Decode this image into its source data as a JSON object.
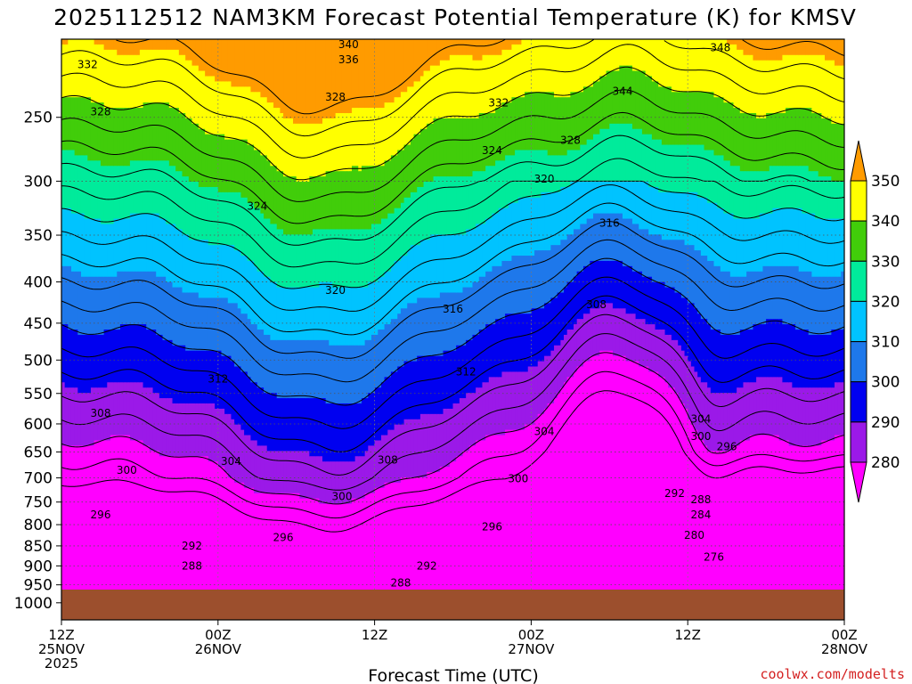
{
  "title": "2025112512 NAM3KM Forecast Potential Temperature (K) for KMSV",
  "credit": "coolwx.com/modelts",
  "colors": {
    "ground": "#9c4f2d",
    "bands": [
      {
        "min": 270,
        "max": 280,
        "color": "#ff00ff"
      },
      {
        "min": 280,
        "max": 290,
        "color": "#9b19e8"
      },
      {
        "min": 290,
        "max": 300,
        "color": "#0000f0"
      },
      {
        "min": 300,
        "max": 310,
        "color": "#1e78eb"
      },
      {
        "min": 310,
        "max": 320,
        "color": "#00c3ff"
      },
      {
        "min": 320,
        "max": 330,
        "color": "#00eb9b"
      },
      {
        "min": 330,
        "max": 340,
        "color": "#41cd0a"
      },
      {
        "min": 340,
        "max": 350,
        "color": "#ffff00"
      },
      {
        "min": 350,
        "max": 360,
        "color": "#ff9b00"
      }
    ]
  },
  "chart_data": {
    "type": "heatmap",
    "title": "2025112512 NAM3KM Forecast Potential Temperature (K) for KMSV",
    "xlabel": "Forecast Time (UTC)",
    "ylabel": "",
    "y_scale": "log",
    "y_inverted": true,
    "y_ticks": [
      250,
      300,
      350,
      400,
      450,
      500,
      550,
      600,
      650,
      700,
      750,
      800,
      850,
      900,
      950,
      1000
    ],
    "ylim": [
      200,
      1050
    ],
    "x_ticks": [
      {
        "hour": 0,
        "line1": "12Z",
        "line2": "25NOV",
        "line3": "2025"
      },
      {
        "hour": 12,
        "line1": "00Z",
        "line2": "26NOV",
        "line3": ""
      },
      {
        "hour": 24,
        "line1": "12Z",
        "line2": "",
        "line3": ""
      },
      {
        "hour": 36,
        "line1": "00Z",
        "line2": "27NOV",
        "line3": ""
      },
      {
        "hour": 48,
        "line1": "12Z",
        "line2": "",
        "line3": ""
      },
      {
        "hour": 60,
        "line1": "00Z",
        "line2": "28NOV",
        "line3": ""
      }
    ],
    "xlim": [
      0,
      60
    ],
    "ground_level_hpa": 963,
    "colorbar": {
      "ticks": [
        280,
        290,
        300,
        310,
        320,
        330,
        340,
        350
      ],
      "range": [
        270,
        360
      ],
      "extend": "both"
    },
    "contour_interval": 4,
    "contour_labels": [
      {
        "value": "340",
        "hour": 22.0,
        "p": 203
      },
      {
        "value": "336",
        "hour": 22.0,
        "p": 212
      },
      {
        "value": "348",
        "hour": 50.5,
        "p": 205
      },
      {
        "value": "332",
        "hour": 2.0,
        "p": 215
      },
      {
        "value": "344",
        "hour": 43.0,
        "p": 232
      },
      {
        "value": "328",
        "hour": 3.0,
        "p": 246
      },
      {
        "value": "328",
        "hour": 21.0,
        "p": 236
      },
      {
        "value": "332",
        "hour": 33.5,
        "p": 240
      },
      {
        "value": "328",
        "hour": 39.0,
        "p": 267
      },
      {
        "value": "324",
        "hour": 33.0,
        "p": 275
      },
      {
        "value": "320",
        "hour": 37.0,
        "p": 298
      },
      {
        "value": "324",
        "hour": 15.0,
        "p": 322
      },
      {
        "value": "316",
        "hour": 42.0,
        "p": 338
      },
      {
        "value": "320",
        "hour": 21.0,
        "p": 410
      },
      {
        "value": "316",
        "hour": 30.0,
        "p": 432
      },
      {
        "value": "308",
        "hour": 41.0,
        "p": 427
      },
      {
        "value": "312",
        "hour": 12.0,
        "p": 528
      },
      {
        "value": "312",
        "hour": 31.0,
        "p": 517
      },
      {
        "value": "308",
        "hour": 3.0,
        "p": 582
      },
      {
        "value": "304",
        "hour": 49.0,
        "p": 592
      },
      {
        "value": "304",
        "hour": 37.0,
        "p": 613
      },
      {
        "value": "300",
        "hour": 49.0,
        "p": 622
      },
      {
        "value": "296",
        "hour": 51.0,
        "p": 640
      },
      {
        "value": "300",
        "hour": 5.0,
        "p": 685
      },
      {
        "value": "304",
        "hour": 13.0,
        "p": 668
      },
      {
        "value": "308",
        "hour": 25.0,
        "p": 665
      },
      {
        "value": "300",
        "hour": 35.0,
        "p": 702
      },
      {
        "value": "300",
        "hour": 21.5,
        "p": 738
      },
      {
        "value": "292",
        "hour": 47.0,
        "p": 732
      },
      {
        "value": "288",
        "hour": 49.0,
        "p": 745
      },
      {
        "value": "284",
        "hour": 49.0,
        "p": 778
      },
      {
        "value": "296",
        "hour": 3.0,
        "p": 778
      },
      {
        "value": "296",
        "hour": 33.0,
        "p": 805
      },
      {
        "value": "296",
        "hour": 17.0,
        "p": 830
      },
      {
        "value": "292",
        "hour": 10.0,
        "p": 850
      },
      {
        "value": "280",
        "hour": 48.5,
        "p": 825
      },
      {
        "value": "276",
        "hour": 50.0,
        "p": 878
      },
      {
        "value": "292",
        "hour": 28.0,
        "p": 900
      },
      {
        "value": "288",
        "hour": 10.0,
        "p": 900
      },
      {
        "value": "288",
        "hour": 26.0,
        "p": 945
      }
    ]
  },
  "colorbar_labels": [
    "280",
    "290",
    "300",
    "310",
    "320",
    "330",
    "340",
    "350"
  ]
}
